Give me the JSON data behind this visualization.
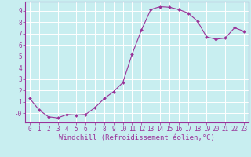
{
  "x": [
    0,
    1,
    2,
    3,
    4,
    5,
    6,
    7,
    8,
    9,
    10,
    11,
    12,
    13,
    14,
    15,
    16,
    17,
    18,
    19,
    20,
    21,
    22,
    23
  ],
  "y": [
    1.3,
    0.3,
    -0.3,
    -0.4,
    -0.1,
    -0.15,
    -0.1,
    0.5,
    1.3,
    1.9,
    2.7,
    5.2,
    7.3,
    9.1,
    9.35,
    9.3,
    9.1,
    8.8,
    8.1,
    6.7,
    6.5,
    6.6,
    7.5,
    7.2
  ],
  "line_color": "#993399",
  "marker": "D",
  "marker_size": 2.0,
  "bg_color": "#c8eef0",
  "grid_color": "#ffffff",
  "xlabel": "Windchill (Refroidissement éolien,°C)",
  "xlim": [
    -0.5,
    23.5
  ],
  "ylim": [
    -0.8,
    9.8
  ],
  "xticks": [
    0,
    1,
    2,
    3,
    4,
    5,
    6,
    7,
    8,
    9,
    10,
    11,
    12,
    13,
    14,
    15,
    16,
    17,
    18,
    19,
    20,
    21,
    22,
    23
  ],
  "yticks": [
    0,
    1,
    2,
    3,
    4,
    5,
    6,
    7,
    8,
    9
  ],
  "ytick_labels": [
    "-0",
    "1",
    "2",
    "3",
    "4",
    "5",
    "6",
    "7",
    "8",
    "9"
  ],
  "tick_color": "#993399",
  "tick_fontsize": 5.5,
  "xlabel_fontsize": 6.5,
  "label_color": "#993399",
  "spine_color": "#993399"
}
